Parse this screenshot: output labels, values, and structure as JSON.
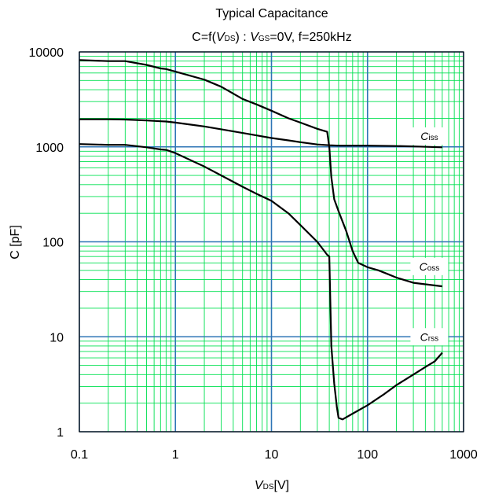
{
  "chart_data": {
    "type": "line",
    "title": "Typical Capacitance",
    "subtitle": {
      "prefix": "C=f(",
      "var1": "V",
      "var1_sub": "DS",
      "mid": ") : ",
      "var2": "V",
      "var2_sub": "GS",
      "suffix": "=0V, f=250kHz"
    },
    "xlabel": {
      "var": "V",
      "sub": "DS",
      "unit": "[V]"
    },
    "ylabel": "C  [pF]",
    "x_scale": "log",
    "y_scale": "log",
    "xlim": [
      0.1,
      1000
    ],
    "ylim": [
      1,
      10000
    ],
    "x_ticks": [
      0.1,
      1,
      10,
      100,
      1000
    ],
    "x_tick_labels": [
      "0.1",
      "1",
      "10",
      "100",
      "1000"
    ],
    "y_ticks": [
      1,
      10,
      100,
      1000,
      10000
    ],
    "y_tick_labels": [
      "1",
      "10",
      "100",
      "1000",
      "10000"
    ],
    "grid": true,
    "colors": {
      "major_grid": "#2e75b6",
      "minor_grid": "#00e050",
      "series": "#000000",
      "frame": "#000000"
    },
    "series": [
      {
        "name": "Ciss",
        "label_main": "C",
        "label_sub": "iss",
        "label_at": [
          440,
          1300
        ],
        "points": [
          [
            0.1,
            1950
          ],
          [
            0.2,
            1950
          ],
          [
            0.3,
            1940
          ],
          [
            0.5,
            1900
          ],
          [
            0.7,
            1860
          ],
          [
            0.8,
            1850
          ],
          [
            1,
            1800
          ],
          [
            2,
            1640
          ],
          [
            3,
            1530
          ],
          [
            5,
            1400
          ],
          [
            7,
            1320
          ],
          [
            10,
            1240
          ],
          [
            15,
            1170
          ],
          [
            20,
            1120
          ],
          [
            30,
            1060
          ],
          [
            40,
            1040
          ],
          [
            50,
            1030
          ],
          [
            100,
            1030
          ],
          [
            200,
            1020
          ],
          [
            300,
            1010
          ],
          [
            600,
            990
          ]
        ]
      },
      {
        "name": "Coss",
        "label_main": "C",
        "label_sub": "oss",
        "label_at": [
          440,
          55
        ],
        "points": [
          [
            0.1,
            8200
          ],
          [
            0.2,
            8000
          ],
          [
            0.3,
            8000
          ],
          [
            0.5,
            7300
          ],
          [
            0.7,
            6700
          ],
          [
            0.8,
            6600
          ],
          [
            1,
            6200
          ],
          [
            2,
            5100
          ],
          [
            3,
            4300
          ],
          [
            5,
            3200
          ],
          [
            7,
            2800
          ],
          [
            10,
            2400
          ],
          [
            15,
            2000
          ],
          [
            20,
            1800
          ],
          [
            30,
            1550
          ],
          [
            38,
            1440
          ],
          [
            40,
            1000
          ],
          [
            42,
            480
          ],
          [
            45,
            280
          ],
          [
            50,
            210
          ],
          [
            60,
            130
          ],
          [
            70,
            80
          ],
          [
            80,
            60
          ],
          [
            100,
            54
          ],
          [
            130,
            50
          ],
          [
            160,
            46
          ],
          [
            200,
            42
          ],
          [
            300,
            37
          ],
          [
            600,
            34
          ]
        ]
      },
      {
        "name": "Crss",
        "label_main": "C",
        "label_sub": "rss",
        "label_at": [
          440,
          10
        ],
        "points": [
          [
            0.1,
            1070
          ],
          [
            0.2,
            1050
          ],
          [
            0.3,
            1050
          ],
          [
            0.5,
            990
          ],
          [
            0.7,
            940
          ],
          [
            0.8,
            930
          ],
          [
            1,
            860
          ],
          [
            2,
            620
          ],
          [
            3,
            500
          ],
          [
            5,
            380
          ],
          [
            7,
            320
          ],
          [
            10,
            270
          ],
          [
            15,
            200
          ],
          [
            20,
            150
          ],
          [
            30,
            100
          ],
          [
            38,
            73
          ],
          [
            40,
            70
          ],
          [
            42,
            8
          ],
          [
            45,
            3.2
          ],
          [
            48,
            1.8
          ],
          [
            50,
            1.4
          ],
          [
            55,
            1.35
          ],
          [
            70,
            1.55
          ],
          [
            100,
            1.9
          ],
          [
            150,
            2.5
          ],
          [
            200,
            3.1
          ],
          [
            300,
            4
          ],
          [
            400,
            4.8
          ],
          [
            500,
            5.5
          ],
          [
            600,
            6.8
          ]
        ]
      }
    ]
  }
}
